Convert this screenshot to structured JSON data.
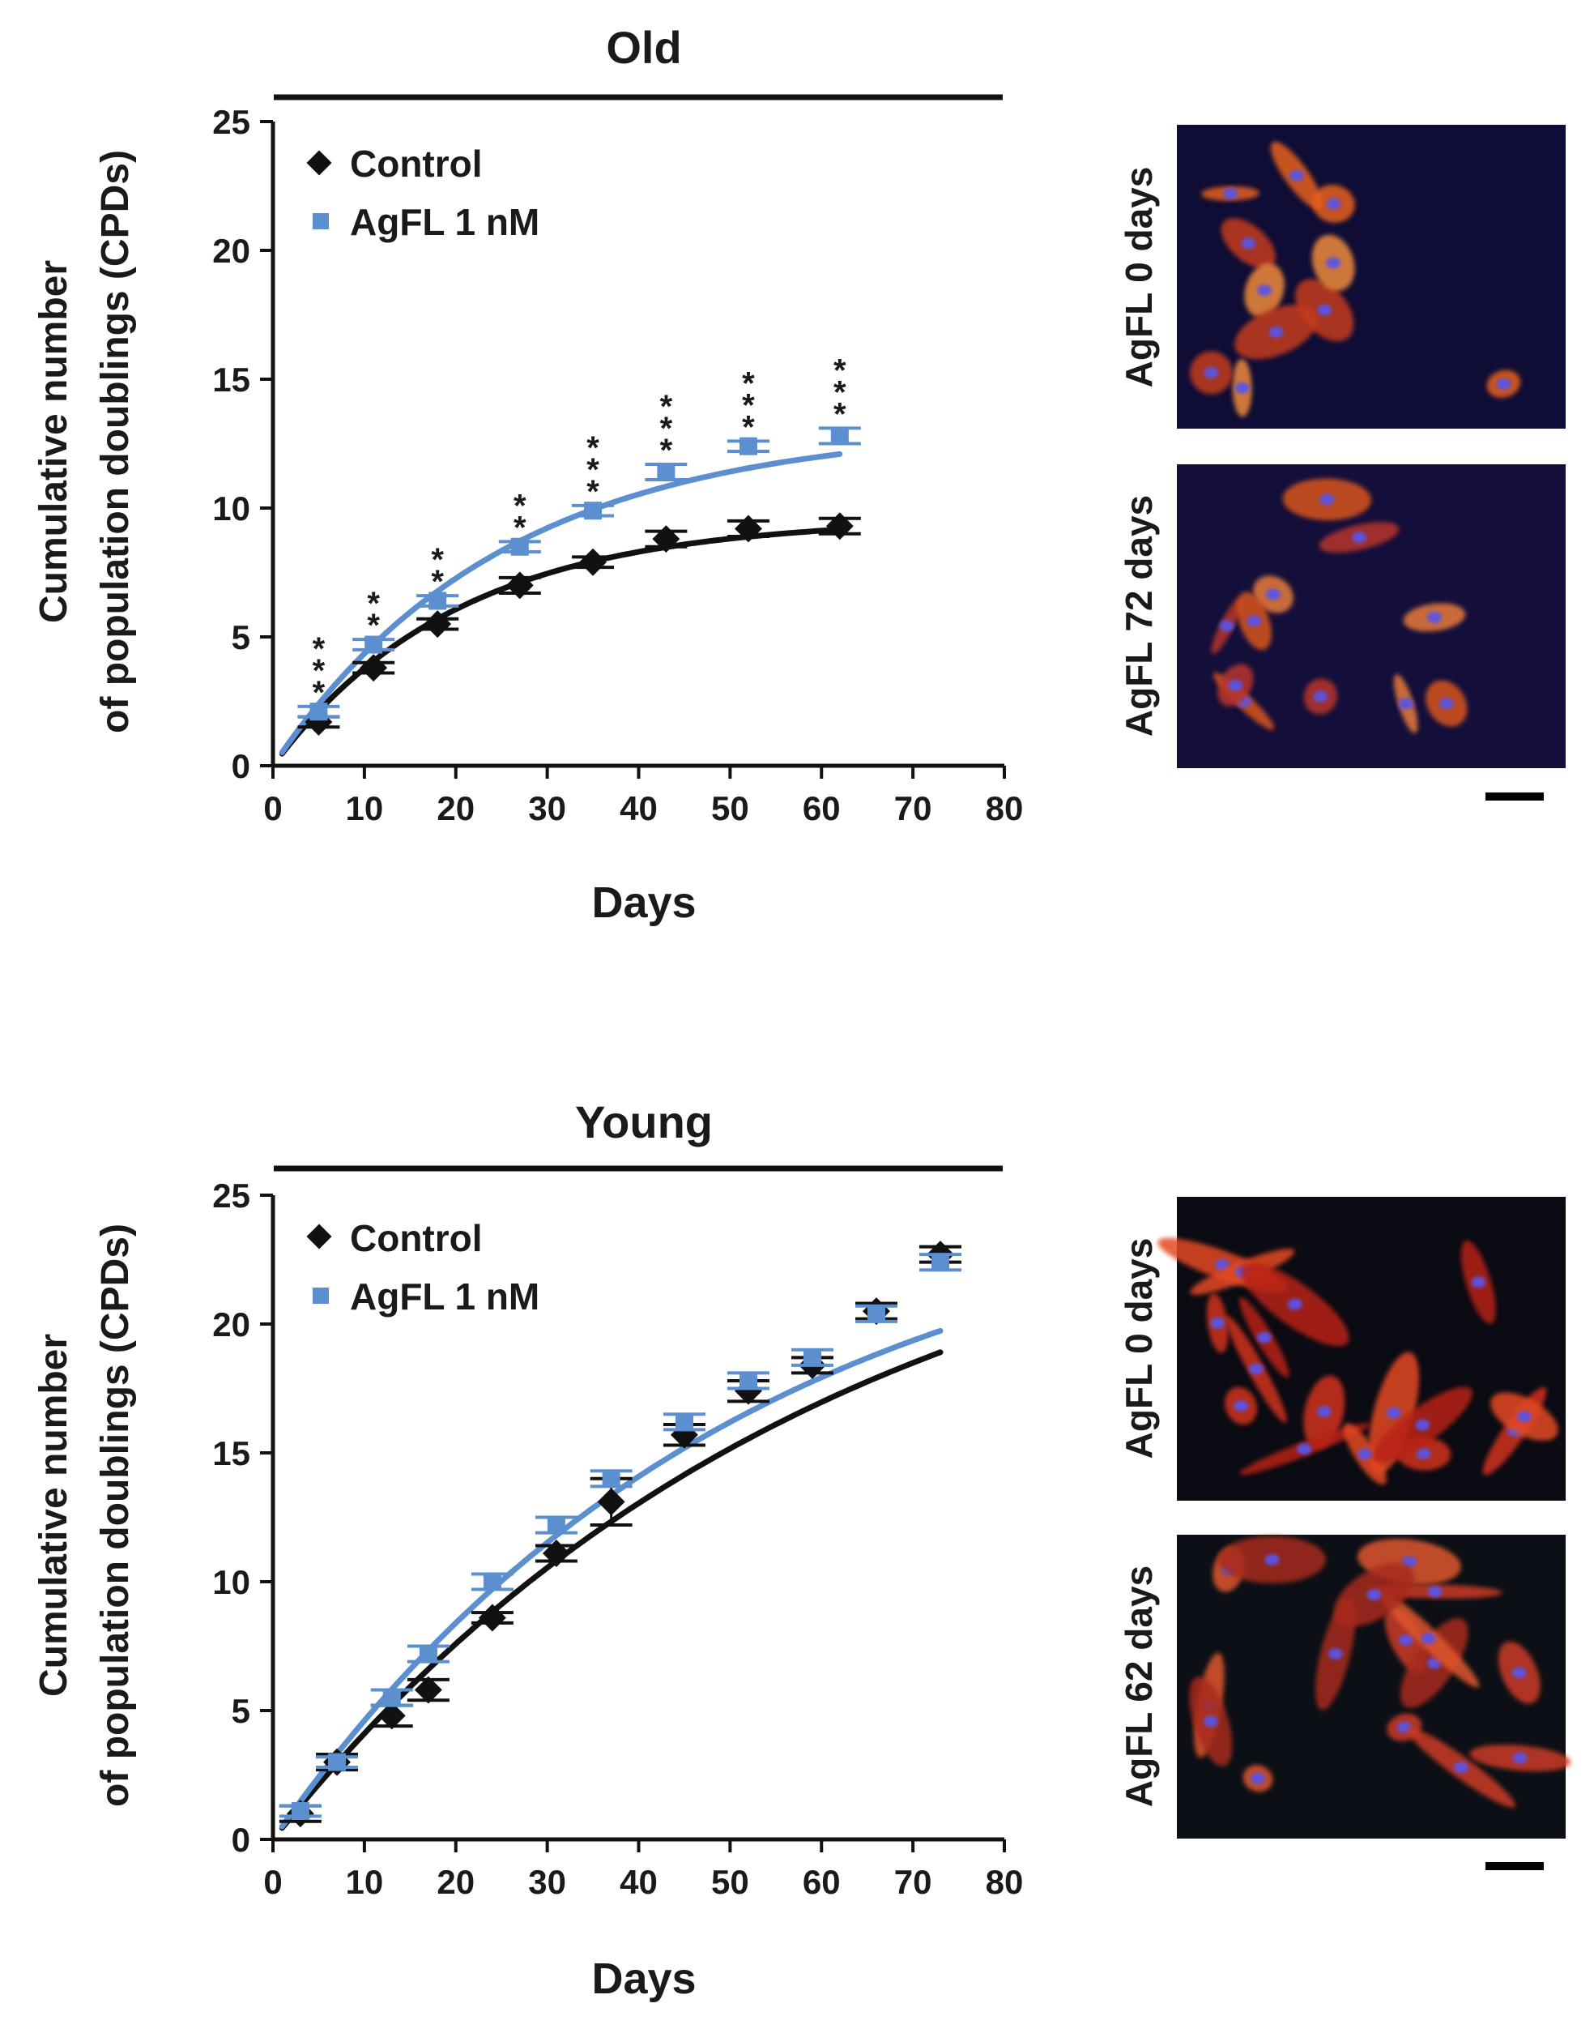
{
  "colors": {
    "control": "#111111",
    "agfl": "#5b8fcf",
    "axis": "#111111"
  },
  "chart_data": [
    {
      "type": "scatter",
      "title": "Old",
      "xlabel": "Days",
      "ylabel_lines": [
        "Cumulative number",
        "of population doublings (CPDs)"
      ],
      "xlim": [
        0,
        80
      ],
      "ylim": [
        0,
        25
      ],
      "xticks": [
        0,
        10,
        20,
        30,
        40,
        50,
        60,
        70,
        80
      ],
      "yticks": [
        0,
        5,
        10,
        15,
        20,
        25
      ],
      "legend": "top-left",
      "series": [
        {
          "name": "Control",
          "marker": "diamond",
          "color_key": "control",
          "x": [
            5,
            11,
            18,
            27,
            35,
            43,
            52,
            62
          ],
          "y": [
            1.7,
            3.8,
            5.5,
            7.0,
            7.9,
            8.8,
            9.2,
            9.3
          ],
          "err": [
            0.2,
            0.2,
            0.2,
            0.3,
            0.2,
            0.3,
            0.3,
            0.3
          ],
          "fit": {
            "a": 9.6,
            "k": 0.05
          }
        },
        {
          "name": "AgFL 1 nM",
          "marker": "square",
          "color_key": "agfl",
          "x": [
            5,
            11,
            18,
            27,
            35,
            43,
            52,
            62
          ],
          "y": [
            2.1,
            4.7,
            6.4,
            8.5,
            9.9,
            11.4,
            12.4,
            12.8
          ],
          "err": [
            0.2,
            0.2,
            0.2,
            0.2,
            0.2,
            0.3,
            0.2,
            0.3
          ],
          "fit": {
            "a": 13.2,
            "k": 0.04
          }
        }
      ],
      "annotations": [
        {
          "x": 5,
          "text": "***"
        },
        {
          "x": 11,
          "text": "**"
        },
        {
          "x": 18,
          "text": "**"
        },
        {
          "x": 27,
          "text": "**"
        },
        {
          "x": 35,
          "text": "***"
        },
        {
          "x": 43,
          "text": "***"
        },
        {
          "x": 52,
          "text": "***"
        },
        {
          "x": 62,
          "text": "***"
        }
      ]
    },
    {
      "type": "scatter",
      "title": "Young",
      "xlabel": "Days",
      "ylabel_lines": [
        "Cumulative number",
        "of population doublings (CPDs)"
      ],
      "xlim": [
        0,
        80
      ],
      "ylim": [
        0,
        25
      ],
      "xticks": [
        0,
        10,
        20,
        30,
        40,
        50,
        60,
        70,
        80
      ],
      "yticks": [
        0,
        5,
        10,
        15,
        20,
        25
      ],
      "legend": "top-left",
      "series": [
        {
          "name": "Control",
          "marker": "diamond",
          "color_key": "control",
          "x": [
            3,
            7,
            13,
            17,
            24,
            31,
            37,
            45,
            52,
            59,
            66,
            73
          ],
          "y": [
            1.0,
            3.0,
            4.8,
            5.8,
            8.6,
            11.1,
            13.1,
            15.7,
            17.4,
            18.4,
            20.5,
            22.7
          ],
          "err": [
            0.3,
            0.3,
            0.4,
            0.4,
            0.2,
            0.3,
            0.9,
            0.4,
            0.4,
            0.3,
            0.3,
            0.3
          ],
          "fit": {
            "a": 27.0,
            "k": 0.0165
          }
        },
        {
          "name": "AgFL 1 nM",
          "marker": "square",
          "color_key": "agfl",
          "x": [
            3,
            7,
            13,
            17,
            24,
            31,
            37,
            45,
            52,
            59,
            66,
            73
          ],
          "y": [
            1.1,
            3.0,
            5.5,
            7.2,
            10.0,
            12.2,
            14.0,
            16.2,
            17.8,
            18.7,
            20.4,
            22.4
          ],
          "err": [
            0.2,
            0.2,
            0.3,
            0.3,
            0.3,
            0.3,
            0.3,
            0.3,
            0.3,
            0.3,
            0.3,
            0.3
          ],
          "fit": {
            "a": 26.0,
            "k": 0.0195
          }
        }
      ],
      "annotations": []
    }
  ],
  "micrographs": [
    {
      "label": "AgFL 0 days",
      "style": "old-0"
    },
    {
      "label": "AgFL 72 days",
      "style": "old-72"
    },
    {
      "label": "AgFL 0 days",
      "style": "young-0"
    },
    {
      "label": "AgFL 62 days",
      "style": "young-62"
    }
  ]
}
